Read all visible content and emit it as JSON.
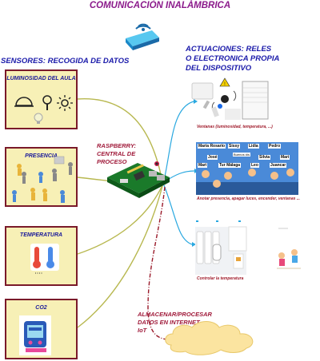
{
  "title": "COMUNICACIÓN INALÁMBRICA",
  "sensors_header": "SENSORES: RECOGIDA DE DATOS",
  "actuators_header": [
    "ACTUACIONES: RELES",
    "O ELECTRONICA PROPIA",
    "DEL DISPOSITIVO"
  ],
  "sensors": [
    {
      "label": "LUMINOSIDAD DEL AULA"
    },
    {
      "label": "PRESENCIA"
    },
    {
      "label": "TEMPERATURA"
    },
    {
      "label": "CO2"
    }
  ],
  "raspberry_label": [
    "RASPBERRY:",
    "CENTRAL DE",
    "PROCESO"
  ],
  "iot_label": [
    "ALMACENAR/PROCESAR",
    "DATOS EN INTERNET",
    "IoT"
  ],
  "actuators": [
    {
      "caption": "Ventanas (luminosidad, temperatura, ...)"
    },
    {
      "caption": "Anotar presencia, apagar luces, encender, ventanas ..."
    },
    {
      "caption": "Controlar la temperatura"
    }
  ],
  "nameplate_names": [
    "María Rosario",
    "Sissy",
    "Lidia",
    "Pedro",
    "José",
    "Buenos dís",
    "Silvia",
    "Mari",
    "Mari",
    "Tur Málaga",
    "Leo",
    "Juancar"
  ],
  "co2_display": "CO2",
  "colors": {
    "title": "#8b1a8b",
    "headers": "#1a1aaa",
    "sensor_fill": "#f7f0b6",
    "sensor_border": "#7a1a2a",
    "connector": "#b8b850",
    "actuator_line": "#29a8e0",
    "iot_line": "#9a1a2a",
    "cloud": "#fbe4a0"
  }
}
